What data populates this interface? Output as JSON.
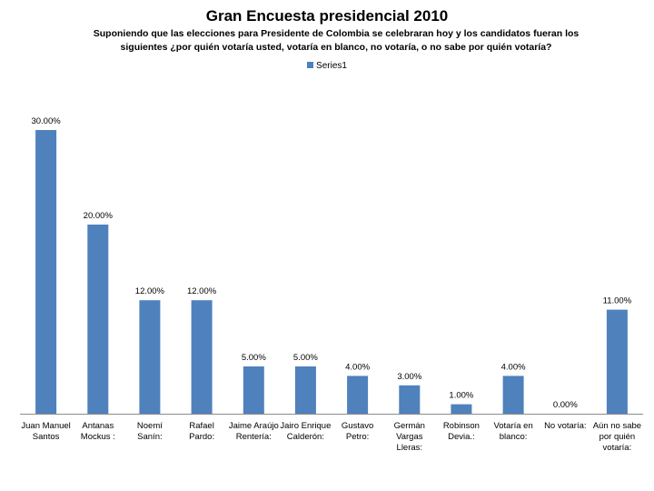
{
  "chart_data": {
    "type": "bar",
    "title": "Gran Encuesta presidencial 2010",
    "subtitle": "Suponiendo que las elecciones para Presidente de Colombia se celebraran hoy y los candidatos fueran los siguientes ¿por quién votaría usted, votaría en blanco, no votaría, o no sabe por quién votaría?",
    "categories": [
      "Juan Manuel Santos",
      "Antanas Mockus :",
      "Noemí Sanín:",
      "Rafael Pardo:",
      "Jaime Araújo Rentería:",
      "Jairo Enrique Calderón:",
      "Gustavo Petro:",
      "Germán Vargas Lleras:",
      "Robinson Devia.:",
      "Votaría en blanco:",
      "No votaría:",
      "Aún no sabe por quién votaría:"
    ],
    "series": [
      {
        "name": "Series1",
        "values": [
          30,
          20,
          12,
          12,
          5,
          5,
          4,
          3,
          1,
          4,
          0,
          11
        ],
        "labels": [
          "30.00%",
          "20.00%",
          "12.00%",
          "12.00%",
          "5.00%",
          "5.00%",
          "4.00%",
          "3.00%",
          "1.00%",
          "4.00%",
          "0.00%",
          "11.00%"
        ]
      }
    ],
    "ylim": [
      0,
      30
    ],
    "legend_position": "top",
    "grid": false,
    "bar_color": "#4f81bd"
  }
}
